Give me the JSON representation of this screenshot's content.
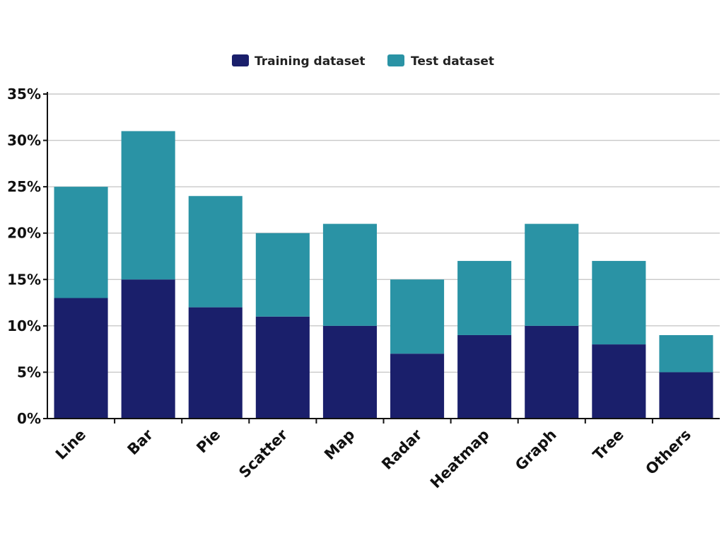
{
  "chart_data": {
    "type": "bar",
    "stacked": true,
    "categories": [
      "Line",
      "Bar",
      "Pie",
      "Scatter",
      "Map",
      "Radar",
      "Heatmap",
      "Graph",
      "Tree",
      "Others"
    ],
    "series": [
      {
        "name": "Training dataset",
        "color": "#1a1f6b",
        "values": [
          13,
          15,
          12,
          11,
          10,
          7,
          9,
          10,
          8,
          5
        ]
      },
      {
        "name": "Test dataset",
        "color": "#2a93a5",
        "values": [
          12,
          16,
          12,
          9,
          11,
          8,
          8,
          11,
          9,
          4
        ]
      }
    ],
    "yticks": [
      "0%",
      "5%",
      "10%",
      "15%",
      "20%",
      "25%",
      "30%",
      "35%"
    ],
    "ylim": [
      0,
      35
    ],
    "grid": true,
    "legend_position": "top-center",
    "title": "",
    "xlabel": "",
    "ylabel": ""
  }
}
